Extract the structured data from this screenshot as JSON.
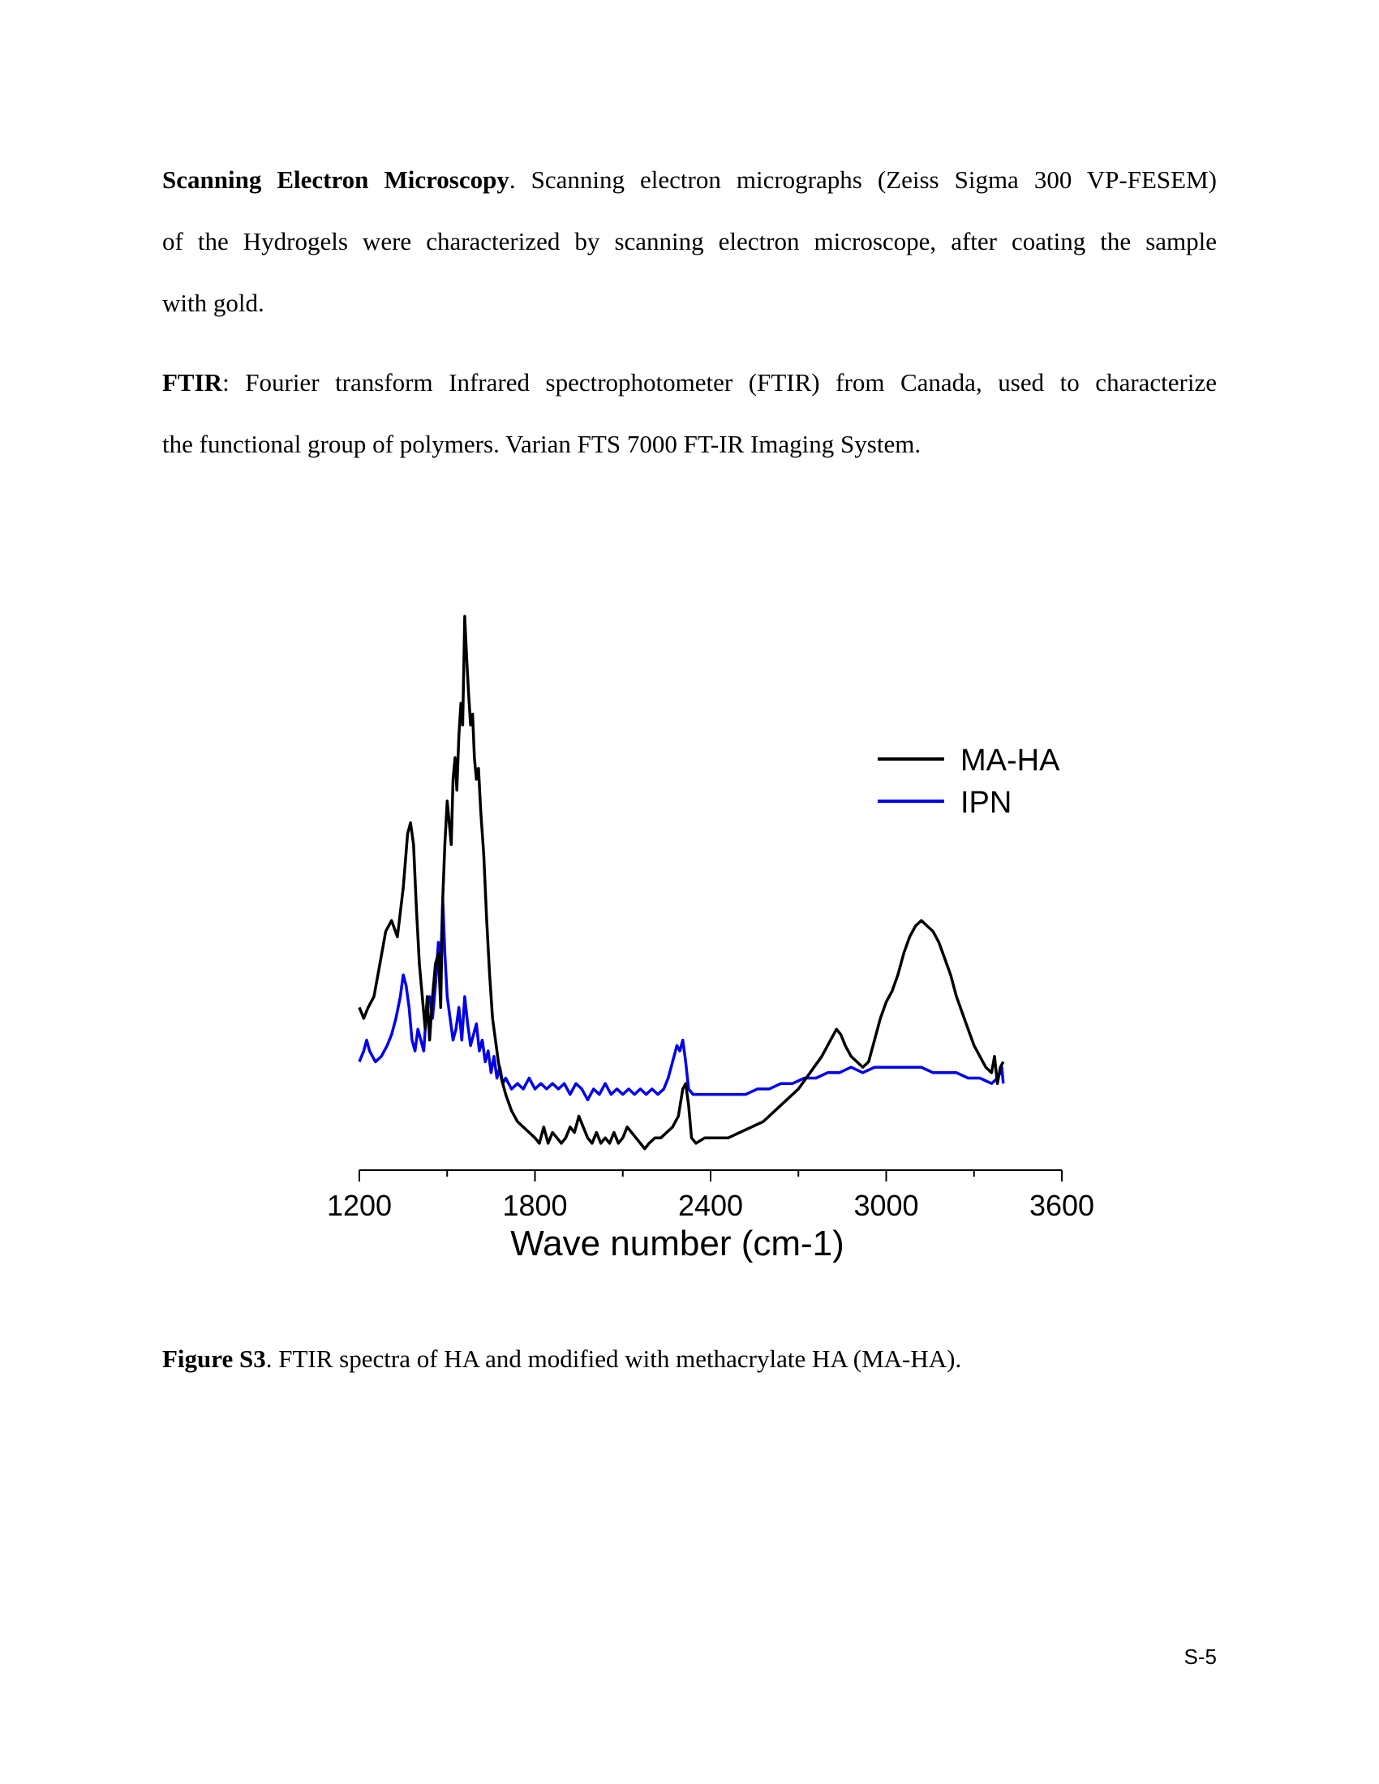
{
  "sections": [
    {
      "heading": "Scanning Electron Microscopy",
      "lines": [
        ". Scanning electron micrographs (Zeiss Sigma 300 VP-FESEM)",
        "of the Hydrogels were characterized by scanning electron microscope, after coating the sample",
        "with gold."
      ]
    },
    {
      "heading": "FTIR",
      "lines": [
        ": Fourier transform Infrared spectrophotometer (FTIR) from Canada, used to characterize",
        "the functional group of polymers. Varian FTS 7000 FT-IR Imaging System."
      ]
    }
  ],
  "figure": {
    "caption_label": "Figure S3",
    "caption_text": ". FTIR spectra of HA and modified with methacrylate HA (MA-HA)."
  },
  "page_number": "S-5",
  "chart_data": {
    "type": "line",
    "title": "",
    "xlabel": "Wave number (cm-1)",
    "ylabel": "",
    "xlim": [
      1200,
      3600
    ],
    "ylim": [
      0,
      100
    ],
    "xticks": [
      1200,
      1800,
      2400,
      3000,
      3600
    ],
    "x_minor_ticks": [
      1500,
      2100,
      2700,
      3300
    ],
    "grid": false,
    "y_axis_visible": false,
    "legend_position": "top-right",
    "series": [
      {
        "name": "MA-HA",
        "color": "#000000",
        "points": [
          [
            1200,
            28
          ],
          [
            1215,
            26
          ],
          [
            1230,
            28
          ],
          [
            1250,
            30
          ],
          [
            1270,
            36
          ],
          [
            1290,
            42
          ],
          [
            1310,
            44
          ],
          [
            1330,
            41
          ],
          [
            1350,
            50
          ],
          [
            1365,
            60
          ],
          [
            1375,
            62
          ],
          [
            1385,
            58
          ],
          [
            1395,
            46
          ],
          [
            1405,
            36
          ],
          [
            1415,
            30
          ],
          [
            1425,
            24
          ],
          [
            1432,
            30
          ],
          [
            1440,
            22
          ],
          [
            1450,
            30
          ],
          [
            1460,
            36
          ],
          [
            1470,
            38
          ],
          [
            1478,
            28
          ],
          [
            1485,
            48
          ],
          [
            1492,
            58
          ],
          [
            1500,
            66
          ],
          [
            1507,
            62
          ],
          [
            1514,
            58
          ],
          [
            1520,
            70
          ],
          [
            1527,
            74
          ],
          [
            1533,
            68
          ],
          [
            1540,
            78
          ],
          [
            1547,
            84
          ],
          [
            1553,
            80
          ],
          [
            1560,
            100
          ],
          [
            1567,
            92
          ],
          [
            1573,
            86
          ],
          [
            1580,
            80
          ],
          [
            1587,
            82
          ],
          [
            1593,
            74
          ],
          [
            1600,
            70
          ],
          [
            1607,
            72
          ],
          [
            1615,
            64
          ],
          [
            1625,
            56
          ],
          [
            1635,
            44
          ],
          [
            1645,
            34
          ],
          [
            1655,
            26
          ],
          [
            1665,
            22
          ],
          [
            1675,
            18
          ],
          [
            1685,
            15
          ],
          [
            1700,
            12
          ],
          [
            1720,
            9
          ],
          [
            1740,
            7
          ],
          [
            1760,
            6
          ],
          [
            1780,
            5
          ],
          [
            1800,
            4
          ],
          [
            1815,
            3
          ],
          [
            1830,
            6
          ],
          [
            1845,
            3
          ],
          [
            1860,
            5
          ],
          [
            1875,
            4
          ],
          [
            1890,
            3
          ],
          [
            1905,
            4
          ],
          [
            1920,
            6
          ],
          [
            1935,
            5
          ],
          [
            1950,
            8
          ],
          [
            1965,
            6
          ],
          [
            1980,
            4
          ],
          [
            1995,
            3
          ],
          [
            2010,
            5
          ],
          [
            2025,
            3
          ],
          [
            2040,
            4
          ],
          [
            2055,
            3
          ],
          [
            2070,
            5
          ],
          [
            2085,
            3
          ],
          [
            2100,
            4
          ],
          [
            2115,
            6
          ],
          [
            2130,
            5
          ],
          [
            2145,
            4
          ],
          [
            2160,
            3
          ],
          [
            2175,
            2
          ],
          [
            2190,
            3
          ],
          [
            2210,
            4
          ],
          [
            2230,
            4
          ],
          [
            2250,
            5
          ],
          [
            2270,
            6
          ],
          [
            2290,
            8
          ],
          [
            2305,
            13
          ],
          [
            2315,
            14
          ],
          [
            2325,
            10
          ],
          [
            2335,
            4
          ],
          [
            2350,
            3
          ],
          [
            2380,
            4
          ],
          [
            2420,
            4
          ],
          [
            2460,
            4
          ],
          [
            2500,
            5
          ],
          [
            2540,
            6
          ],
          [
            2580,
            7
          ],
          [
            2620,
            9
          ],
          [
            2660,
            11
          ],
          [
            2700,
            13
          ],
          [
            2740,
            16
          ],
          [
            2780,
            19
          ],
          [
            2810,
            22
          ],
          [
            2830,
            24
          ],
          [
            2845,
            23
          ],
          [
            2860,
            21
          ],
          [
            2880,
            19
          ],
          [
            2900,
            18
          ],
          [
            2920,
            17
          ],
          [
            2940,
            18
          ],
          [
            2960,
            22
          ],
          [
            2980,
            26
          ],
          [
            3000,
            29
          ],
          [
            3020,
            31
          ],
          [
            3040,
            34
          ],
          [
            3060,
            38
          ],
          [
            3080,
            41
          ],
          [
            3100,
            43
          ],
          [
            3120,
            44
          ],
          [
            3140,
            43
          ],
          [
            3160,
            42
          ],
          [
            3180,
            40
          ],
          [
            3200,
            37
          ],
          [
            3220,
            34
          ],
          [
            3240,
            30
          ],
          [
            3260,
            27
          ],
          [
            3280,
            24
          ],
          [
            3300,
            21
          ],
          [
            3320,
            19
          ],
          [
            3340,
            17
          ],
          [
            3360,
            16
          ],
          [
            3370,
            19
          ],
          [
            3380,
            14
          ],
          [
            3390,
            17
          ],
          [
            3400,
            18
          ]
        ]
      },
      {
        "name": "IPN",
        "color": "#0000ee",
        "points": [
          [
            1200,
            18
          ],
          [
            1215,
            20
          ],
          [
            1225,
            22
          ],
          [
            1235,
            20
          ],
          [
            1255,
            18
          ],
          [
            1275,
            19
          ],
          [
            1295,
            21
          ],
          [
            1310,
            23
          ],
          [
            1325,
            26
          ],
          [
            1340,
            30
          ],
          [
            1350,
            34
          ],
          [
            1360,
            32
          ],
          [
            1370,
            28
          ],
          [
            1380,
            22
          ],
          [
            1390,
            20
          ],
          [
            1400,
            24
          ],
          [
            1410,
            22
          ],
          [
            1420,
            20
          ],
          [
            1430,
            28
          ],
          [
            1440,
            30
          ],
          [
            1450,
            26
          ],
          [
            1460,
            32
          ],
          [
            1470,
            40
          ],
          [
            1478,
            36
          ],
          [
            1485,
            48
          ],
          [
            1492,
            38
          ],
          [
            1500,
            30
          ],
          [
            1510,
            26
          ],
          [
            1520,
            22
          ],
          [
            1530,
            24
          ],
          [
            1540,
            28
          ],
          [
            1550,
            22
          ],
          [
            1560,
            30
          ],
          [
            1570,
            25
          ],
          [
            1580,
            21
          ],
          [
            1590,
            23
          ],
          [
            1600,
            25
          ],
          [
            1610,
            20
          ],
          [
            1620,
            22
          ],
          [
            1630,
            18
          ],
          [
            1640,
            20
          ],
          [
            1650,
            16
          ],
          [
            1660,
            19
          ],
          [
            1670,
            15
          ],
          [
            1680,
            17
          ],
          [
            1690,
            14
          ],
          [
            1700,
            15
          ],
          [
            1720,
            13
          ],
          [
            1740,
            14
          ],
          [
            1760,
            13
          ],
          [
            1780,
            15
          ],
          [
            1800,
            13
          ],
          [
            1820,
            14
          ],
          [
            1840,
            13
          ],
          [
            1860,
            14
          ],
          [
            1880,
            13
          ],
          [
            1900,
            14
          ],
          [
            1920,
            12
          ],
          [
            1940,
            14
          ],
          [
            1960,
            13
          ],
          [
            1980,
            11
          ],
          [
            2000,
            13
          ],
          [
            2020,
            12
          ],
          [
            2040,
            14
          ],
          [
            2060,
            12
          ],
          [
            2080,
            13
          ],
          [
            2100,
            12
          ],
          [
            2120,
            13
          ],
          [
            2140,
            12
          ],
          [
            2160,
            13
          ],
          [
            2180,
            12
          ],
          [
            2200,
            13
          ],
          [
            2220,
            12
          ],
          [
            2240,
            13
          ],
          [
            2255,
            15
          ],
          [
            2270,
            18
          ],
          [
            2285,
            21
          ],
          [
            2295,
            20
          ],
          [
            2305,
            22
          ],
          [
            2315,
            18
          ],
          [
            2325,
            13
          ],
          [
            2340,
            12
          ],
          [
            2360,
            12
          ],
          [
            2400,
            12
          ],
          [
            2440,
            12
          ],
          [
            2480,
            12
          ],
          [
            2520,
            12
          ],
          [
            2560,
            13
          ],
          [
            2600,
            13
          ],
          [
            2640,
            14
          ],
          [
            2680,
            14
          ],
          [
            2720,
            15
          ],
          [
            2760,
            15
          ],
          [
            2800,
            16
          ],
          [
            2840,
            16
          ],
          [
            2880,
            17
          ],
          [
            2920,
            16
          ],
          [
            2960,
            17
          ],
          [
            3000,
            17
          ],
          [
            3040,
            17
          ],
          [
            3080,
            17
          ],
          [
            3120,
            17
          ],
          [
            3160,
            16
          ],
          [
            3200,
            16
          ],
          [
            3240,
            16
          ],
          [
            3280,
            15
          ],
          [
            3320,
            15
          ],
          [
            3360,
            14
          ],
          [
            3380,
            15
          ],
          [
            3390,
            16
          ],
          [
            3395,
            17
          ],
          [
            3400,
            14
          ]
        ]
      }
    ]
  }
}
